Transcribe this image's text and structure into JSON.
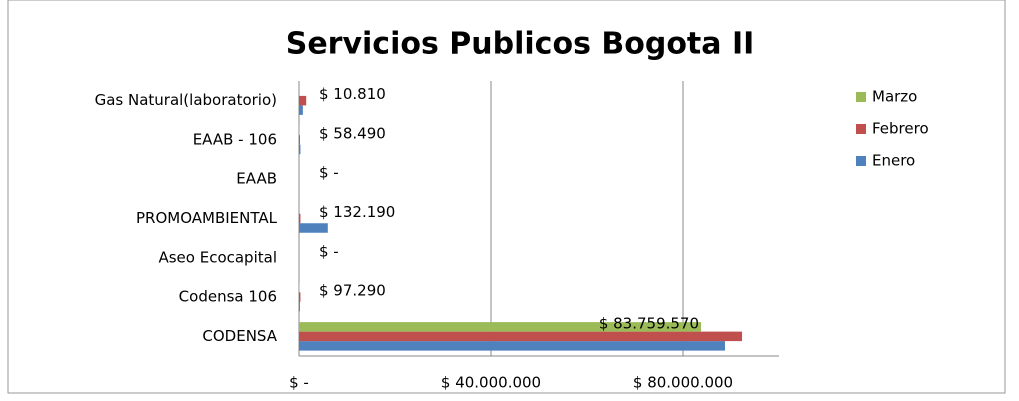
{
  "chart_data": {
    "type": "bar",
    "orientation": "horizontal",
    "title": "Servicios Publicos Bogota  II",
    "categories": [
      "Gas Natural(laboratorio)",
      "EAAB - 106",
      "EAAB",
      "PROMOAMBIENTAL",
      "Aseo Ecocapital",
      "Codensa 106",
      "CODENSA"
    ],
    "series": [
      {
        "name": "Enero",
        "color": "#4f81bd",
        "values": [
          800000,
          300000,
          0,
          6000000,
          0,
          200000,
          88750000
        ]
      },
      {
        "name": "Febrero",
        "color": "#c0504d",
        "values": [
          1500000,
          200000,
          0,
          300000,
          0,
          300000,
          92300000
        ]
      },
      {
        "name": "Marzo",
        "color": "#9bbb59",
        "values": [
          10810,
          58490,
          0,
          132190,
          0,
          97290,
          83759570
        ],
        "value_labels": [
          "$ 10.810",
          "$ 58.490",
          "$ -",
          "$ 132.190",
          "$ -",
          "$ 97.290",
          "$ 83.759.570"
        ]
      }
    ],
    "xlim": [
      0,
      100000000
    ],
    "xticks": [
      {
        "value": 0,
        "label": "$ -"
      },
      {
        "value": 40000000,
        "label": "$ 40.000.000"
      },
      {
        "value": 80000000,
        "label": "$ 80.000.000"
      }
    ],
    "grid": true,
    "legend": "right"
  }
}
